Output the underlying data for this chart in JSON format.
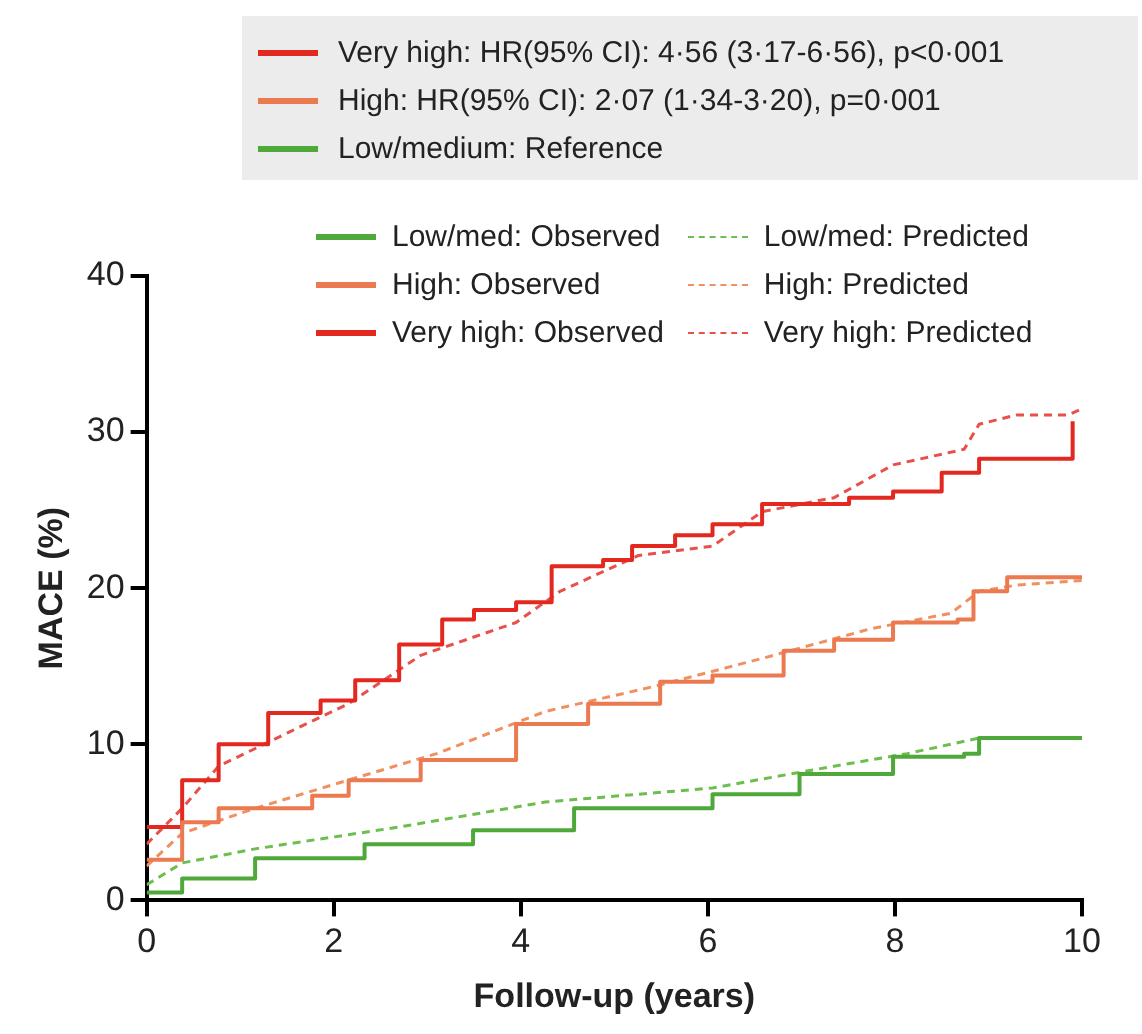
{
  "chart_data": {
    "type": "line",
    "xlabel": "Follow-up (years)",
    "ylabel": "MACE (%)",
    "annotations": [
      "Very high: HR(95% CI): 4·56 (3·17-6·56), p<0·001",
      "High: HR(95% CI): 2·07 (1·34-3·20), p=0·001",
      "Low/medium: Reference"
    ],
    "xlim": [
      0,
      10
    ],
    "xticks": [
      0,
      2,
      4,
      6,
      8,
      10
    ],
    "ylim": [
      0,
      40
    ],
    "yticks": [
      0,
      10,
      20,
      30,
      40
    ],
    "grid": false,
    "legend": "top",
    "marker": "none",
    "series": [
      {
        "name": "Low/med: Observed",
        "type": "step",
        "line_style": "solid",
        "color": "#4fa83a",
        "x": [
          0,
          0.38,
          1.16,
          2.33,
          3.49,
          4.57,
          6.05,
          6.98,
          7.98,
          8.74,
          8.9,
          10
        ],
        "values": [
          0.5,
          1.4,
          2.7,
          3.6,
          4.5,
          5.9,
          6.8,
          8.1,
          9.2,
          9.4,
          10.4,
          10.5
        ]
      },
      {
        "name": "High: Observed",
        "type": "step",
        "line_style": "solid",
        "color": "#ec7a50",
        "x": [
          0,
          0.38,
          0.77,
          1.77,
          2.16,
          2.93,
          3.95,
          4.72,
          5.49,
          6.05,
          6.81,
          7.35,
          7.98,
          8.67,
          8.84,
          9.2,
          10
        ],
        "values": [
          2.6,
          5.0,
          5.9,
          6.7,
          7.7,
          9.0,
          11.3,
          12.6,
          14.0,
          14.4,
          16.0,
          16.7,
          17.8,
          18.0,
          19.8,
          20.7,
          20.7
        ]
      },
      {
        "name": "Very high: Observed",
        "type": "step",
        "line_style": "solid",
        "color": "#e3281f",
        "x": [
          0,
          0.38,
          0.77,
          1.3,
          1.86,
          2.23,
          2.7,
          3.16,
          3.5,
          3.95,
          4.33,
          4.88,
          5.19,
          5.65,
          6.05,
          6.58,
          7.51,
          7.98,
          8.5,
          8.9,
          9.88,
          9.9
        ],
        "values": [
          4.7,
          7.7,
          10.0,
          12.0,
          12.8,
          14.1,
          16.4,
          18.0,
          18.6,
          19.1,
          21.4,
          21.8,
          22.7,
          23.4,
          24.1,
          25.4,
          25.8,
          26.2,
          27.4,
          28.3,
          28.3,
          30.7
        ]
      },
      {
        "name": "Low/med: Predicted",
        "type": "line",
        "line_style": "dashed",
        "color": "#6cbf4e",
        "x": [
          0,
          0.38,
          1.16,
          2.7,
          4.26,
          6.05,
          7.35,
          8.13,
          8.9,
          10
        ],
        "values": [
          1.0,
          2.4,
          3.3,
          4.7,
          6.3,
          7.2,
          8.6,
          9.4,
          10.4,
          10.4
        ]
      },
      {
        "name": "High: Predicted",
        "type": "line",
        "line_style": "dashed",
        "color": "#f09060",
        "x": [
          0,
          0.38,
          1.16,
          1.93,
          3.1,
          4.26,
          5.42,
          6.58,
          7.74,
          8.6,
          8.9,
          9.3,
          10
        ],
        "values": [
          2.2,
          4.3,
          5.9,
          7.3,
          9.4,
          12.1,
          13.7,
          15.5,
          17.4,
          18.4,
          19.8,
          20.2,
          20.5
        ]
      },
      {
        "name": "Very high: Predicted",
        "type": "line",
        "line_style": "dashed",
        "color": "#e8504a",
        "x": [
          0,
          0.38,
          0.77,
          1.53,
          2.16,
          2.93,
          3.95,
          4.42,
          5.26,
          6.05,
          6.58,
          7.35,
          7.98,
          8.74,
          8.9,
          9.3,
          9.85,
          10
        ],
        "values": [
          3.6,
          5.9,
          8.6,
          10.8,
          12.6,
          15.7,
          17.8,
          19.8,
          22.1,
          22.7,
          24.9,
          25.8,
          27.9,
          28.9,
          30.5,
          31.1,
          31.1,
          31.5
        ]
      }
    ]
  }
}
